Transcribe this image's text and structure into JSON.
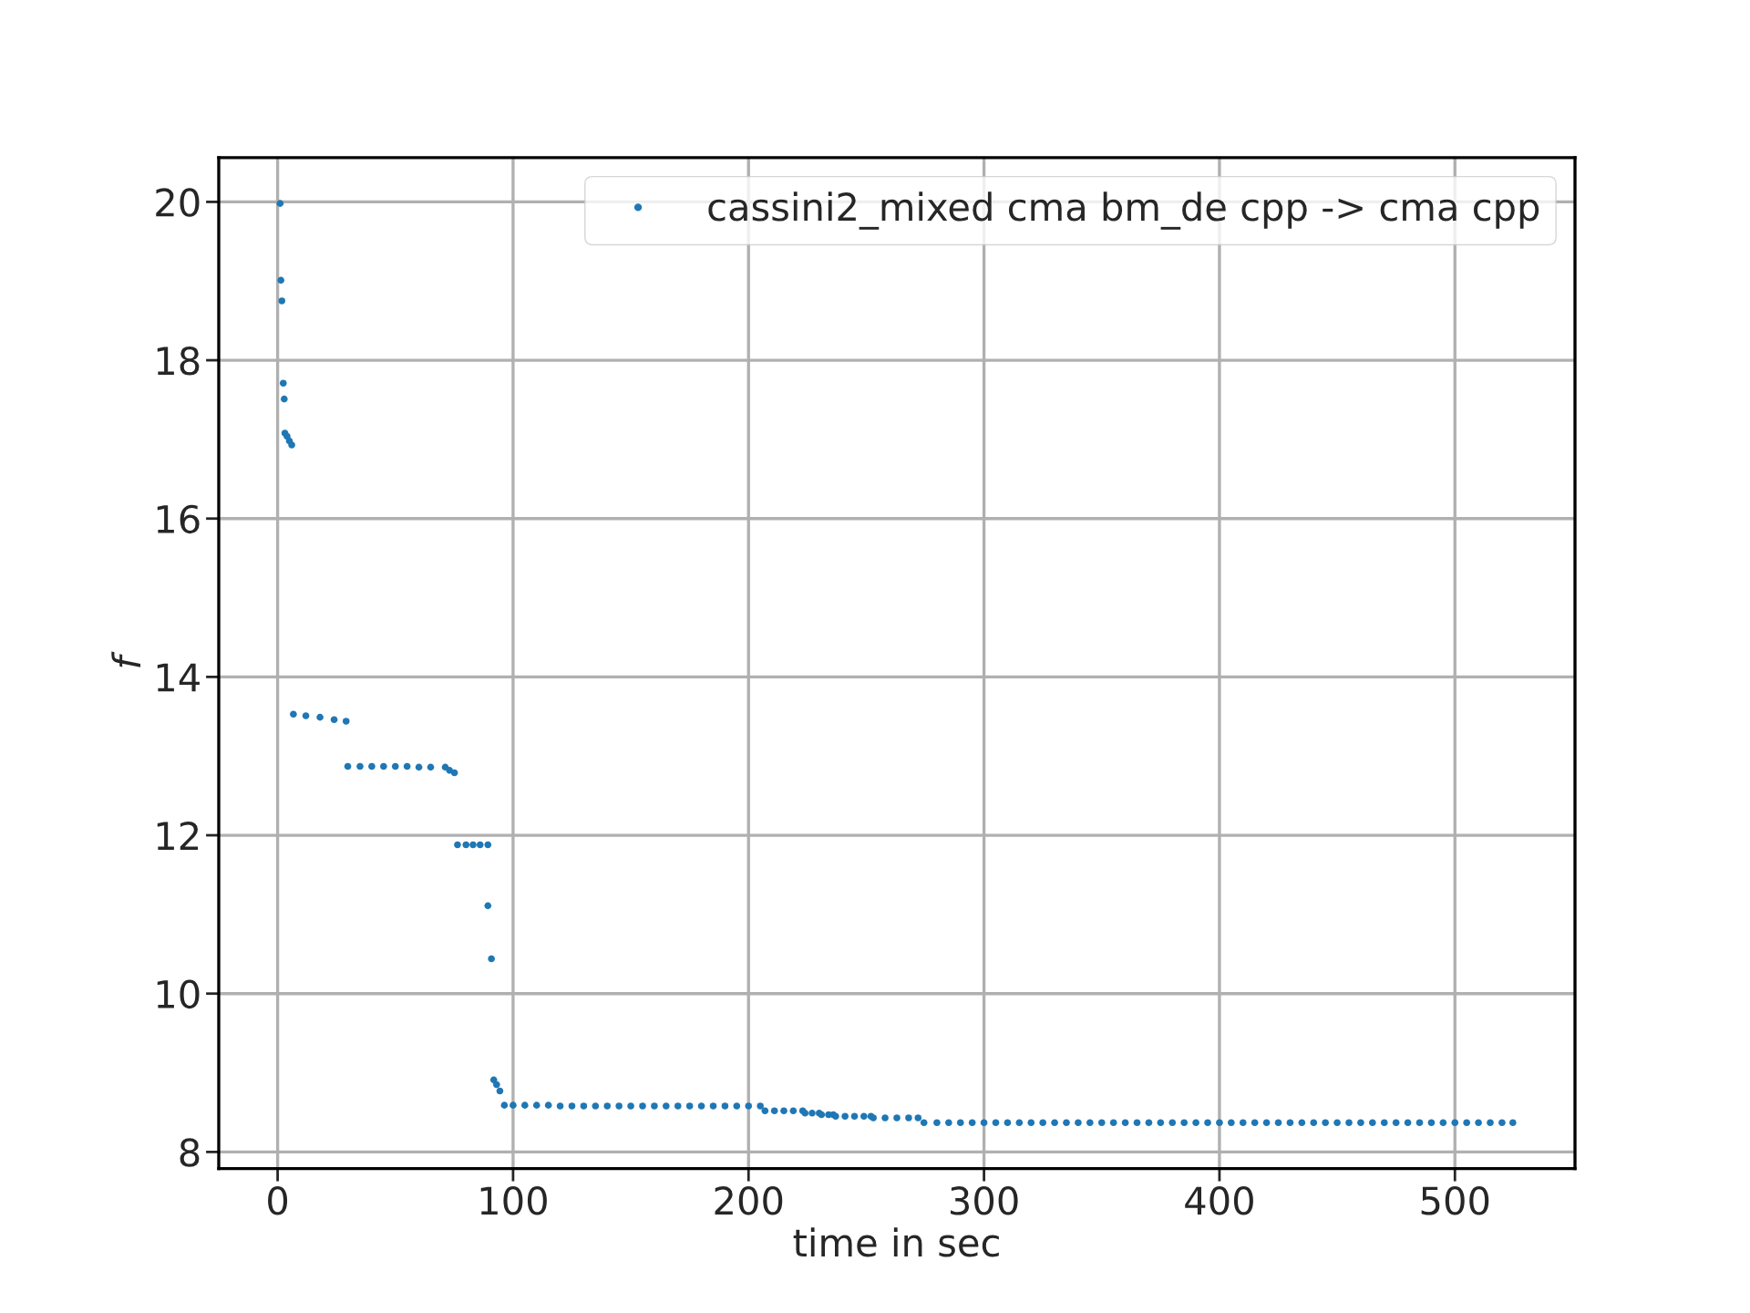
{
  "chart_data": {
    "type": "scatter",
    "xlabel": "time in sec",
    "ylabel": "f",
    "xlim": [
      -25,
      551
    ],
    "ylim": [
      7.79,
      20.56
    ],
    "xticks": [
      0,
      100,
      200,
      300,
      400,
      500
    ],
    "yticks": [
      8,
      10,
      12,
      14,
      16,
      18,
      20
    ],
    "grid": true,
    "legend": "top right",
    "marker": "circle",
    "series": [
      {
        "name": "cassini2_mixed cma bm_de cpp -> cma cpp",
        "color": "#1f77b4",
        "x": [
          1.05,
          1.4,
          1.8,
          2.4,
          2.8,
          3.1,
          4.0,
          5.0,
          6.0,
          6.7,
          12,
          18,
          24,
          29.1,
          29.8,
          35,
          40,
          45,
          50,
          55,
          60,
          65,
          71.2,
          73,
          75.1,
          76.4,
          80,
          83,
          86,
          89.3,
          89.3,
          90.8,
          91.8,
          93,
          94.4,
          96.3,
          100,
          105,
          110,
          115,
          120,
          125,
          130,
          135,
          140,
          145,
          150,
          155,
          160,
          165,
          170,
          175,
          180,
          185,
          190,
          195,
          200,
          205,
          207,
          211,
          215,
          219,
          223,
          224,
          227,
          230,
          231,
          234,
          236,
          237,
          241,
          245,
          249,
          252,
          253,
          258,
          263,
          268,
          272,
          274.5,
          280,
          285,
          290,
          295,
          300,
          305,
          310,
          315,
          320,
          325,
          330,
          335,
          340,
          345,
          350,
          355,
          360,
          365,
          370,
          375,
          380,
          385,
          390,
          395,
          400,
          405,
          410,
          415,
          420,
          425,
          430,
          435,
          440,
          445,
          450,
          455,
          460,
          465,
          470,
          475,
          480,
          485,
          490,
          495,
          500,
          505,
          510,
          515,
          520,
          524.6
        ],
        "values": [
          19.98,
          19.01,
          18.75,
          17.71,
          17.51,
          17.08,
          17.04,
          16.98,
          16.93,
          13.53,
          13.51,
          13.49,
          13.46,
          13.44,
          12.87,
          12.87,
          12.87,
          12.87,
          12.87,
          12.87,
          12.86,
          12.86,
          12.86,
          12.82,
          12.79,
          11.88,
          11.88,
          11.88,
          11.88,
          11.88,
          11.11,
          10.44,
          8.91,
          8.85,
          8.77,
          8.59,
          8.59,
          8.59,
          8.59,
          8.59,
          8.58,
          8.58,
          8.58,
          8.58,
          8.58,
          8.58,
          8.58,
          8.58,
          8.58,
          8.58,
          8.58,
          8.58,
          8.58,
          8.58,
          8.58,
          8.58,
          8.58,
          8.58,
          8.52,
          8.52,
          8.52,
          8.52,
          8.52,
          8.49,
          8.49,
          8.49,
          8.47,
          8.47,
          8.47,
          8.45,
          8.45,
          8.45,
          8.45,
          8.45,
          8.43,
          8.43,
          8.43,
          8.43,
          8.43,
          8.37,
          8.37,
          8.37,
          8.37,
          8.37,
          8.37,
          8.37,
          8.37,
          8.37,
          8.37,
          8.37,
          8.37,
          8.37,
          8.37,
          8.37,
          8.37,
          8.37,
          8.37,
          8.37,
          8.37,
          8.37,
          8.37,
          8.37,
          8.37,
          8.37,
          8.37,
          8.37,
          8.37,
          8.37,
          8.37,
          8.37,
          8.37,
          8.37,
          8.37,
          8.37,
          8.37,
          8.37,
          8.37,
          8.37,
          8.37,
          8.37,
          8.37,
          8.37,
          8.37,
          8.37,
          8.37,
          8.37,
          8.37,
          8.37,
          8.37,
          8.37
        ]
      }
    ]
  }
}
